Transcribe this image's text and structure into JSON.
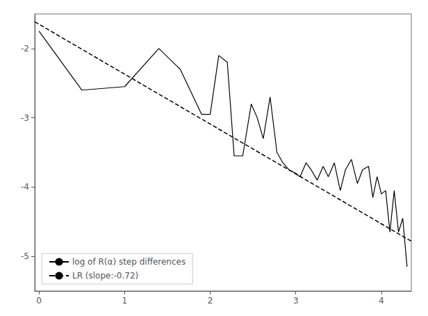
{
  "chart_data": {
    "type": "line",
    "series": [
      {
        "name": "log of R(α) step differences",
        "color": "#000000",
        "line_style": "solid",
        "x": [
          0.0,
          0.5,
          1.0,
          1.4,
          1.65,
          1.9,
          2.0,
          2.1,
          2.2,
          2.28,
          2.38,
          2.48,
          2.55,
          2.62,
          2.7,
          2.78,
          2.85,
          2.92,
          3.0,
          3.05,
          3.12,
          3.18,
          3.25,
          3.32,
          3.38,
          3.45,
          3.52,
          3.58,
          3.65,
          3.72,
          3.78,
          3.85,
          3.9,
          3.95,
          4.0,
          4.05,
          4.1,
          4.15,
          4.2,
          4.25,
          4.3
        ],
        "values": [
          -1.75,
          -2.6,
          -2.55,
          -2.0,
          -2.3,
          -2.95,
          -2.95,
          -2.1,
          -2.2,
          -3.55,
          -3.55,
          -2.8,
          -3.0,
          -3.3,
          -2.7,
          -3.5,
          -3.65,
          -3.75,
          -3.8,
          -3.85,
          -3.65,
          -3.75,
          -3.9,
          -3.7,
          -3.85,
          -3.65,
          -4.05,
          -3.75,
          -3.6,
          -3.95,
          -3.75,
          -3.7,
          -4.15,
          -3.85,
          -4.1,
          -4.05,
          -4.65,
          -4.05,
          -4.65,
          -4.45,
          -5.15
        ]
      },
      {
        "name": "LR (slope:-0.72)",
        "color": "#000000",
        "line_style": "dashed",
        "x": [
          -0.05,
          4.35
        ],
        "values": [
          -1.614,
          -4.782
        ]
      }
    ],
    "xlim": [
      -0.05,
      4.35
    ],
    "ylim": [
      -5.5,
      -1.5
    ],
    "xticks": [
      0,
      1,
      2,
      3,
      4
    ],
    "yticks": [
      -5,
      -4,
      -3,
      -2
    ],
    "grid": false,
    "legend": "lower left"
  }
}
